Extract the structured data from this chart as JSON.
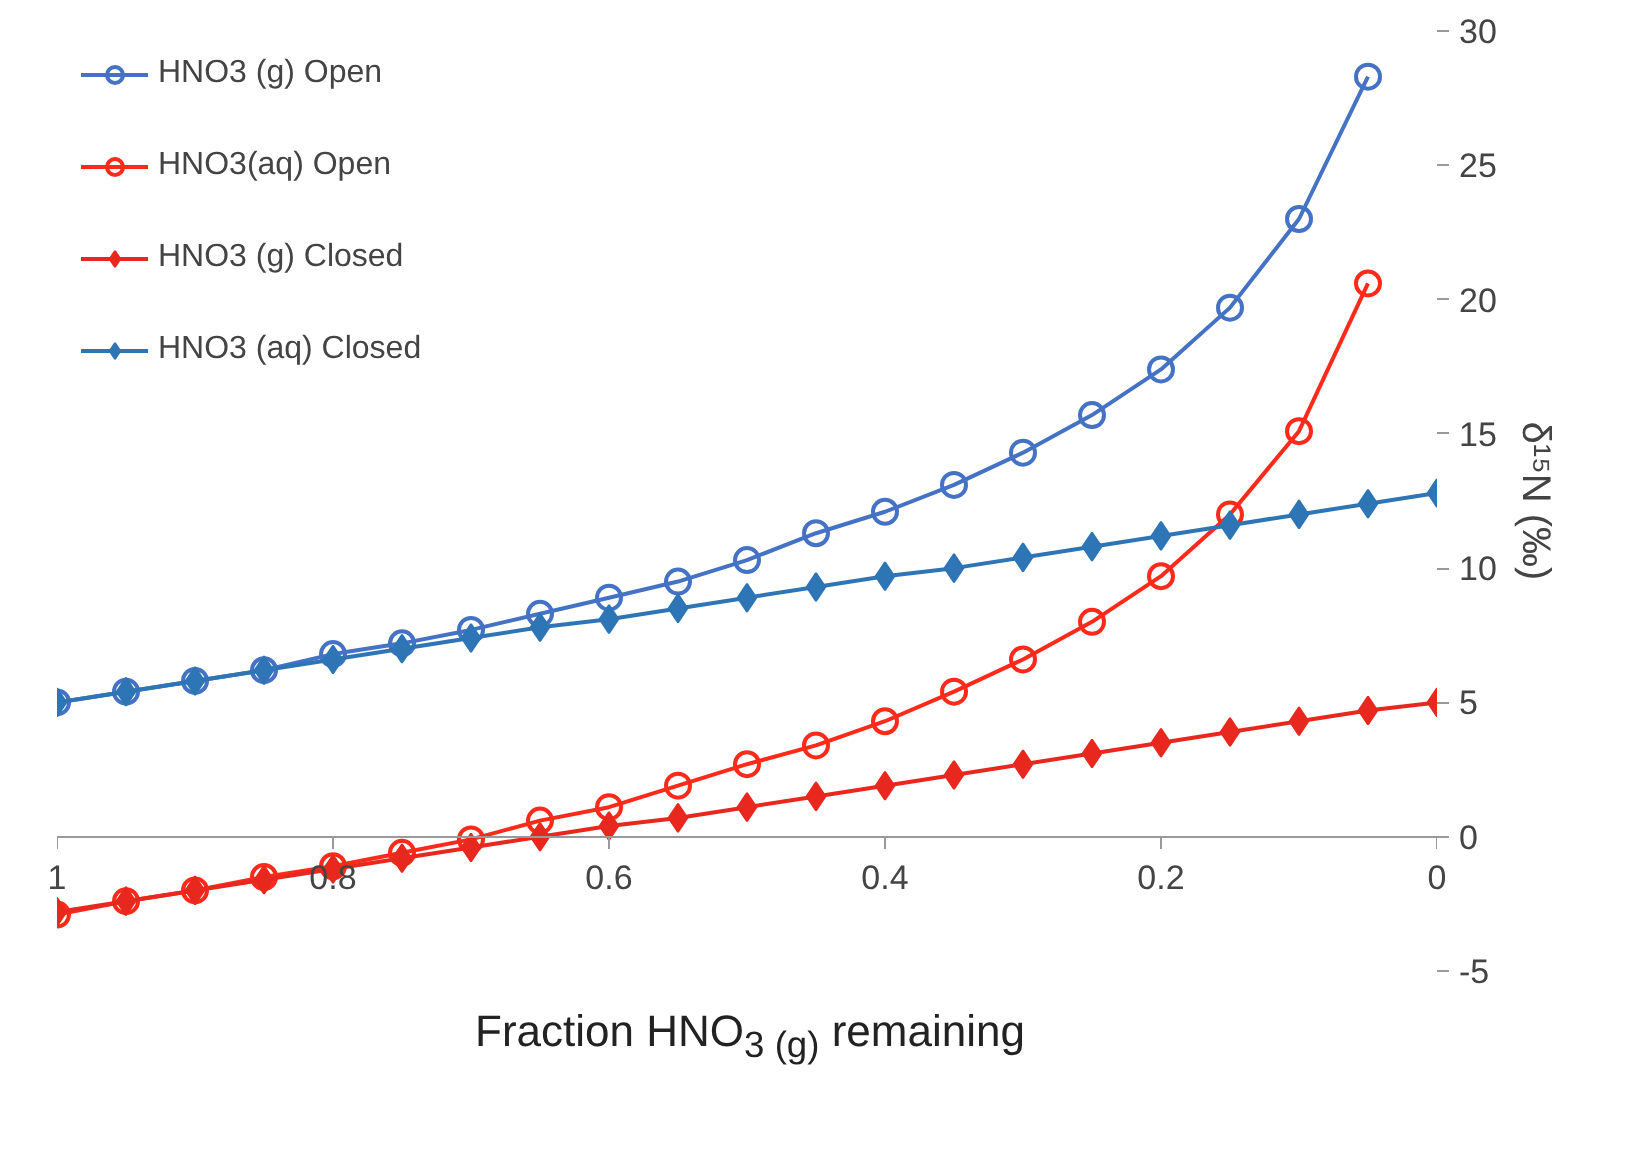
{
  "chart_data": {
    "type": "line",
    "xlabel": "Fraction HNO$_{3 (g)}$ remaining",
    "ylabel": "δ¹⁵N (‰)",
    "xlim": [
      1,
      0
    ],
    "xticks": [
      1,
      0.8,
      0.6,
      0.4,
      0.2,
      0
    ],
    "ylim": [
      -5,
      30
    ],
    "yticks": [
      -5,
      0,
      5,
      10,
      15,
      20,
      25,
      30
    ],
    "grid": false,
    "legend": "top left",
    "line_style": "solid",
    "series": [
      {
        "name": "HNO3 (g) Open",
        "color": "#4472c4",
        "marker": "circle",
        "x": [
          1,
          0.95,
          0.9,
          0.85,
          0.8,
          0.75,
          0.7,
          0.65,
          0.6,
          0.55,
          0.5,
          0.45,
          0.4,
          0.35,
          0.3,
          0.25,
          0.2,
          0.15,
          0.1,
          0.05
        ],
        "values": [
          5.0,
          5.4,
          5.8,
          6.2,
          6.8,
          7.2,
          7.7,
          8.3,
          8.9,
          9.5,
          10.3,
          11.3,
          12.1,
          13.1,
          14.3,
          15.7,
          17.4,
          19.7,
          23.0,
          28.3
        ]
      },
      {
        "name": "HNO3(aq) Open",
        "color": "#ff2a1a",
        "marker": "circle",
        "x": [
          1,
          0.95,
          0.9,
          0.85,
          0.8,
          0.75,
          0.7,
          0.65,
          0.6,
          0.55,
          0.5,
          0.45,
          0.4,
          0.35,
          0.3,
          0.25,
          0.2,
          0.15,
          0.1,
          0.05
        ],
        "values": [
          -2.9,
          -2.4,
          -2.0,
          -1.5,
          -1.1,
          -0.6,
          -0.1,
          0.6,
          1.1,
          1.9,
          2.7,
          3.4,
          4.3,
          5.4,
          6.6,
          8.0,
          9.7,
          12.0,
          15.1,
          20.6
        ]
      },
      {
        "name": "HNO3 (g) Closed",
        "color": "#e8281e",
        "marker": "diamond",
        "x": [
          1,
          0.95,
          0.9,
          0.85,
          0.8,
          0.75,
          0.7,
          0.65,
          0.6,
          0.55,
          0.5,
          0.45,
          0.4,
          0.35,
          0.3,
          0.25,
          0.2,
          0.15,
          0.1,
          0.05,
          0
        ],
        "values": [
          -2.8,
          -2.4,
          -2.0,
          -1.6,
          -1.2,
          -0.8,
          -0.4,
          0.0,
          0.4,
          0.7,
          1.1,
          1.5,
          1.9,
          2.3,
          2.7,
          3.1,
          3.5,
          3.9,
          4.3,
          4.7,
          5.0
        ]
      },
      {
        "name": "HNO3 (aq) Closed",
        "color": "#2e75b6",
        "marker": "diamond",
        "x": [
          1,
          0.95,
          0.9,
          0.85,
          0.8,
          0.75,
          0.7,
          0.65,
          0.6,
          0.55,
          0.5,
          0.45,
          0.4,
          0.35,
          0.3,
          0.25,
          0.2,
          0.15,
          0.1,
          0.05,
          0
        ],
        "values": [
          5.0,
          5.4,
          5.8,
          6.2,
          6.6,
          7.0,
          7.4,
          7.8,
          8.1,
          8.5,
          8.9,
          9.3,
          9.7,
          10.0,
          10.4,
          10.8,
          11.2,
          11.6,
          12.0,
          12.4,
          12.8
        ]
      }
    ]
  }
}
